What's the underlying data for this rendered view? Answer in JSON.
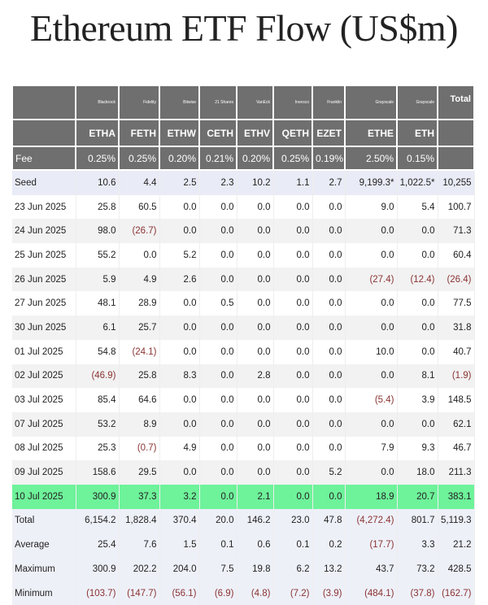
{
  "title": "Ethereum ETF Flow (US$m)",
  "accent": {
    "header_bg": "#6f6f6f",
    "highlight": "#6ef29a",
    "negative": "#8a3333"
  },
  "issuers": [
    "",
    "Blackrock",
    "Fidelity",
    "Bitwise",
    "21 Shares",
    "VanEck",
    "Invesco",
    "Franklin",
    "Grayscale",
    "Grayscale",
    "Total"
  ],
  "tickers": [
    "",
    "ETHA",
    "FETH",
    "ETHW",
    "CETH",
    "ETHV",
    "QETH",
    "EZET",
    "ETHE",
    "ETH",
    ""
  ],
  "fees": [
    "Fee",
    "0.25%",
    "0.25%",
    "0.20%",
    "0.21%",
    "0.20%",
    "0.25%",
    "0.19%",
    "2.50%",
    "0.15%",
    ""
  ],
  "rows": [
    {
      "type": "seed",
      "cells": [
        "Seed",
        "10.6",
        "4.4",
        "2.5",
        "2.3",
        "10.2",
        "1.1",
        "2.7",
        "9,199.3*",
        "1,022.5*",
        "10,255"
      ]
    },
    {
      "type": "odd",
      "cells": [
        "23 Jun 2025",
        "25.8",
        "60.5",
        "0.0",
        "0.0",
        "0.0",
        "0.0",
        "0.0",
        "9.0",
        "5.4",
        "100.7"
      ]
    },
    {
      "type": "even",
      "cells": [
        "24 Jun 2025",
        "98.0",
        "(26.7)",
        "0.0",
        "0.0",
        "0.0",
        "0.0",
        "0.0",
        "0.0",
        "0.0",
        "71.3"
      ]
    },
    {
      "type": "odd",
      "cells": [
        "25 Jun 2025",
        "55.2",
        "0.0",
        "5.2",
        "0.0",
        "0.0",
        "0.0",
        "0.0",
        "0.0",
        "0.0",
        "60.4"
      ]
    },
    {
      "type": "even",
      "cells": [
        "26 Jun 2025",
        "5.9",
        "4.9",
        "2.6",
        "0.0",
        "0.0",
        "0.0",
        "0.0",
        "(27.4)",
        "(12.4)",
        "(26.4)"
      ]
    },
    {
      "type": "odd",
      "cells": [
        "27 Jun 2025",
        "48.1",
        "28.9",
        "0.0",
        "0.5",
        "0.0",
        "0.0",
        "0.0",
        "0.0",
        "0.0",
        "77.5"
      ]
    },
    {
      "type": "even",
      "cells": [
        "30 Jun 2025",
        "6.1",
        "25.7",
        "0.0",
        "0.0",
        "0.0",
        "0.0",
        "0.0",
        "0.0",
        "0.0",
        "31.8"
      ]
    },
    {
      "type": "odd",
      "cells": [
        "01 Jul 2025",
        "54.8",
        "(24.1)",
        "0.0",
        "0.0",
        "0.0",
        "0.0",
        "0.0",
        "10.0",
        "0.0",
        "40.7"
      ]
    },
    {
      "type": "even",
      "cells": [
        "02 Jul 2025",
        "(46.9)",
        "25.8",
        "8.3",
        "0.0",
        "2.8",
        "0.0",
        "0.0",
        "0.0",
        "8.1",
        "(1.9)"
      ]
    },
    {
      "type": "odd",
      "cells": [
        "03 Jul 2025",
        "85.4",
        "64.6",
        "0.0",
        "0.0",
        "0.0",
        "0.0",
        "0.0",
        "(5.4)",
        "3.9",
        "148.5"
      ]
    },
    {
      "type": "even",
      "cells": [
        "07 Jul 2025",
        "53.2",
        "8.9",
        "0.0",
        "0.0",
        "0.0",
        "0.0",
        "0.0",
        "0.0",
        "0.0",
        "62.1"
      ]
    },
    {
      "type": "odd",
      "cells": [
        "08 Jul 2025",
        "25.3",
        "(0.7)",
        "4.9",
        "0.0",
        "0.0",
        "0.0",
        "0.0",
        "7.9",
        "9.3",
        "46.7"
      ]
    },
    {
      "type": "even",
      "cells": [
        "09 Jul 2025",
        "158.6",
        "29.5",
        "0.0",
        "0.0",
        "0.0",
        "0.0",
        "5.2",
        "0.0",
        "18.0",
        "211.3"
      ]
    },
    {
      "type": "hl",
      "cells": [
        "10 Jul 2025",
        "300.9",
        "37.3",
        "3.2",
        "0.0",
        "2.1",
        "0.0",
        "0.0",
        "18.9",
        "20.7",
        "383.1"
      ]
    },
    {
      "type": "sum",
      "cells": [
        "Total",
        "6,154.2",
        "1,828.4",
        "370.4",
        "20.0",
        "146.2",
        "23.0",
        "47.8",
        "(4,272.4)",
        "801.7",
        "5,119.3"
      ]
    },
    {
      "type": "sum",
      "cells": [
        "Average",
        "25.4",
        "7.6",
        "1.5",
        "0.1",
        "0.6",
        "0.1",
        "0.2",
        "(17.7)",
        "3.3",
        "21.2"
      ]
    },
    {
      "type": "sum",
      "cells": [
        "Maximum",
        "300.9",
        "202.2",
        "204.0",
        "7.5",
        "19.8",
        "6.2",
        "13.2",
        "43.7",
        "73.2",
        "428.5"
      ]
    },
    {
      "type": "sum",
      "cells": [
        "Minimum",
        "(103.7)",
        "(147.7)",
        "(56.1)",
        "(6.9)",
        "(4.8)",
        "(7.2)",
        "(3.9)",
        "(484.1)",
        "(37.8)",
        "(162.7)"
      ]
    }
  ]
}
